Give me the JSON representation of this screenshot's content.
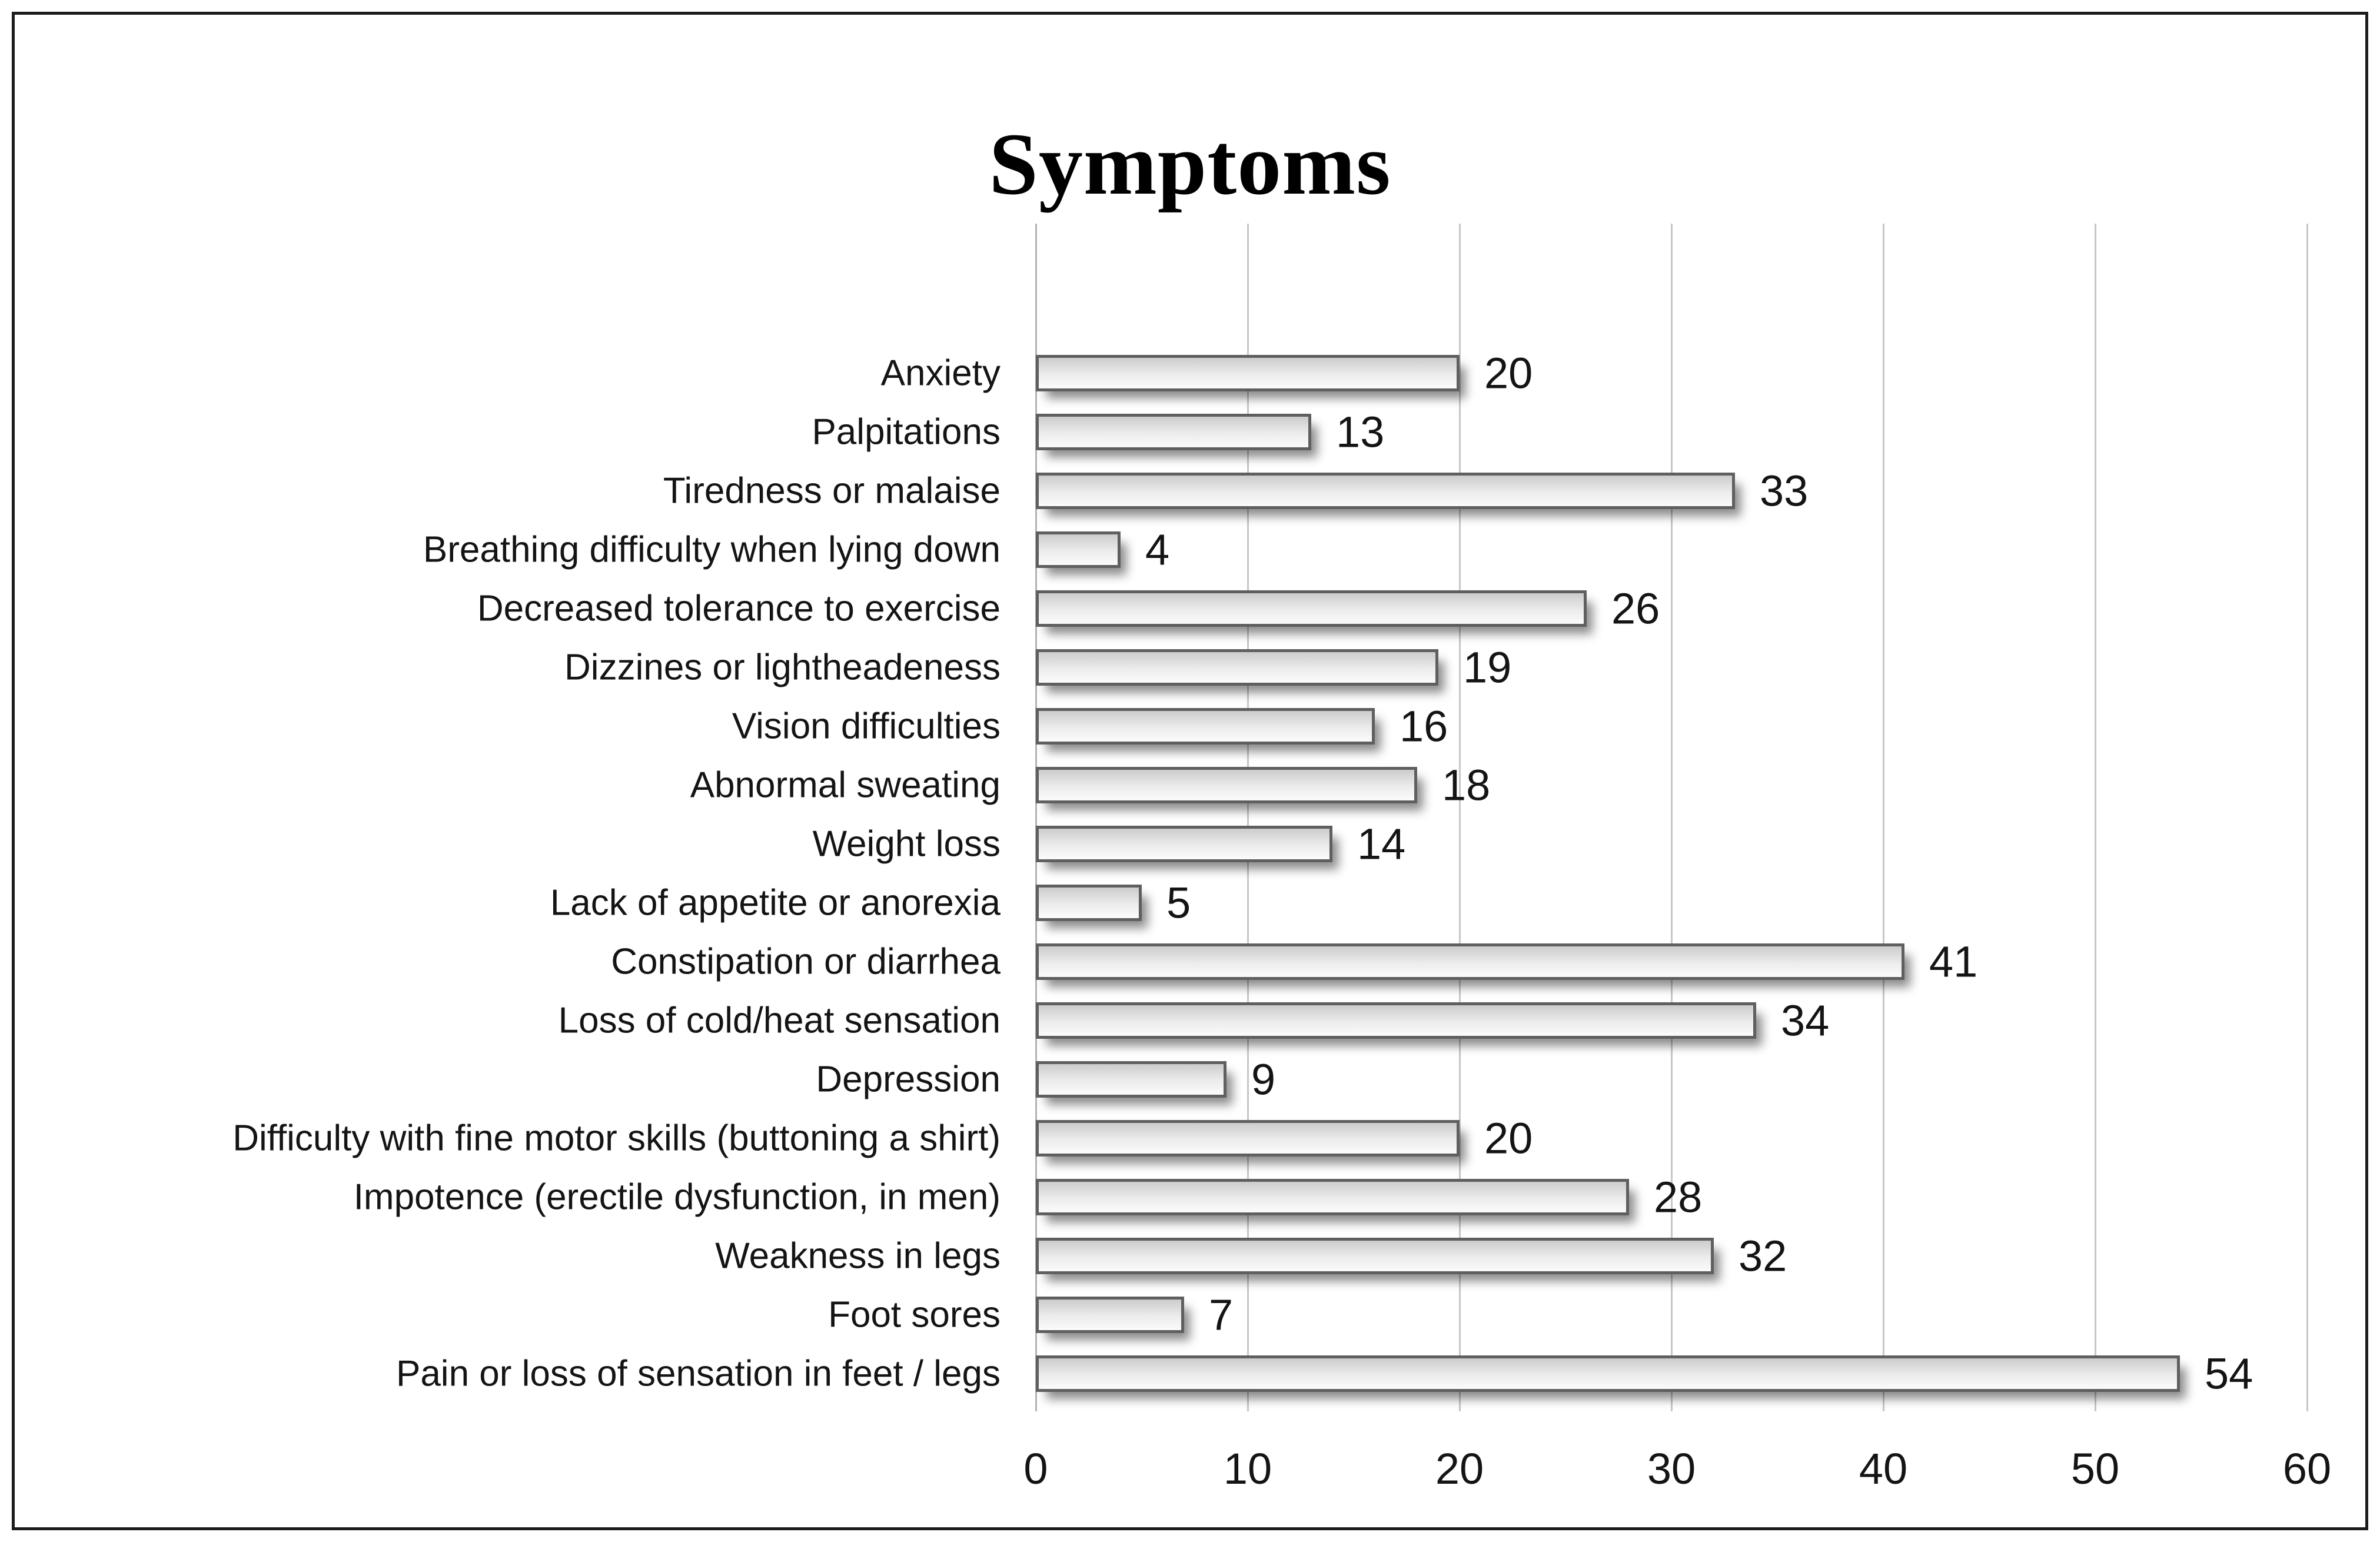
{
  "figure": {
    "title": "Symptoms"
  },
  "chart_data": {
    "type": "bar",
    "orientation": "horizontal",
    "title": "Symptoms",
    "categories": [
      "Anxiety",
      "Palpitations",
      "Tiredness or malaise",
      "Breathing difficulty when lying down",
      "Decreased tolerance to exercise",
      "Dizzines or lightheadeness",
      "Vision difficulties",
      "Abnormal sweating",
      "Weight loss",
      "Lack of appetite or anorexia",
      "Constipation or diarrhea",
      "Loss of cold/heat sensation",
      "Depression",
      "Difficulty with fine motor skills (buttoning a shirt)",
      "Impotence (erectile dysfunction, in men)",
      "Weakness in legs",
      "Foot sores",
      "Pain or loss of sensation in feet / legs"
    ],
    "values": [
      20,
      13,
      33,
      4,
      26,
      19,
      16,
      18,
      14,
      5,
      41,
      34,
      9,
      20,
      28,
      32,
      7,
      54
    ],
    "data_labels": [
      20,
      13,
      33,
      4,
      26,
      19,
      16,
      18,
      14,
      5,
      41,
      34,
      9,
      20,
      28,
      32,
      7,
      54
    ],
    "xlabel": "",
    "ylabel": "",
    "xlim": [
      0,
      60
    ],
    "x_ticks": [
      0,
      10,
      20,
      30,
      40,
      50,
      60
    ],
    "grid": "vertical",
    "legend": "none",
    "colors": {
      "bar_fill_top": "#cccccc",
      "bar_fill_mid": "#ececec",
      "bar_fill_bottom": "#fbfbfb",
      "bar_border": "#5f5f5f",
      "gridline": "#c7c7c7",
      "axis_line": "#b3b3b3",
      "text": "#141414",
      "title": "#000000",
      "frame_border": "#1c1c1c"
    }
  }
}
